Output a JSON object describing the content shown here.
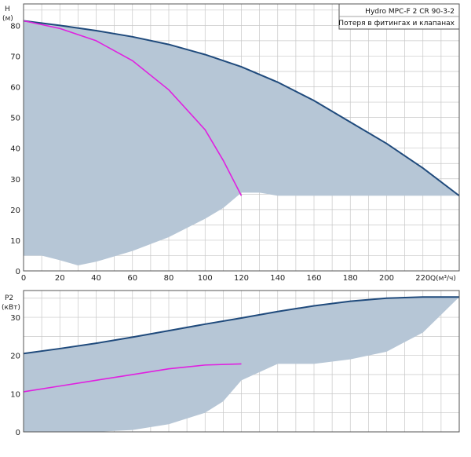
{
  "colors": {
    "envelope_fill": "#b6c6d6",
    "max_curve": "#1f4a7c",
    "system_curve": "#e020e0",
    "grid": "#c8c8c8",
    "frame": "#555555",
    "background": "#ffffff"
  },
  "legend": {
    "line1": "Hydro MPC-F 2 CR 90-3-2",
    "line2": "Потеря в фитингах и клапанах"
  },
  "chart_data": [
    {
      "type": "area",
      "name": "head-chart",
      "ylabel": "H",
      "yunit": "(м)",
      "xlabel": "Q(м³/ч)",
      "xlim": [
        0,
        240
      ],
      "ylim": [
        0,
        87
      ],
      "xticks": [
        0,
        20,
        40,
        60,
        80,
        100,
        120,
        140,
        160,
        180,
        200,
        220
      ],
      "yticks": [
        0,
        10,
        20,
        30,
        40,
        50,
        60,
        70,
        80
      ],
      "grid": true,
      "series": [
        {
          "role": "max-curve",
          "x": [
            0,
            20,
            40,
            60,
            80,
            100,
            120,
            140,
            160,
            180,
            200,
            220,
            240
          ],
          "y": [
            81.5,
            80,
            78.3,
            76.3,
            73.8,
            70.5,
            66.5,
            61.5,
            55.5,
            48.5,
            41.5,
            33.5,
            24.5
          ]
        },
        {
          "role": "system-curve",
          "x": [
            0,
            20,
            40,
            60,
            80,
            100,
            110,
            120
          ],
          "y": [
            81.5,
            79,
            75,
            68.5,
            59,
            46,
            36,
            24.5
          ]
        },
        {
          "role": "min-boundary",
          "x": [
            0,
            10,
            20,
            30,
            40,
            60,
            80,
            100,
            110,
            120,
            130,
            140,
            160,
            180,
            200,
            220,
            240
          ],
          "y": [
            5,
            5,
            3.5,
            1.8,
            3,
            6.5,
            11,
            17,
            20.5,
            25.5,
            25.5,
            24.5,
            24.5,
            24.5,
            24.5,
            24.5,
            24.5
          ]
        }
      ]
    },
    {
      "type": "area",
      "name": "power-chart",
      "ylabel": "P2",
      "yunit": "(кВт)",
      "xlim": [
        0,
        240
      ],
      "ylim": [
        0,
        37
      ],
      "yticks": [
        0,
        10,
        20,
        30
      ],
      "grid": true,
      "series": [
        {
          "role": "max-curve",
          "x": [
            0,
            20,
            40,
            60,
            80,
            100,
            120,
            140,
            160,
            180,
            200,
            220,
            240
          ],
          "y": [
            20.5,
            21.8,
            23.2,
            24.8,
            26.5,
            28.2,
            29.8,
            31.5,
            33,
            34.2,
            35,
            35.3,
            35.3
          ]
        },
        {
          "role": "system-curve",
          "x": [
            0,
            20,
            40,
            60,
            80,
            100,
            120
          ],
          "y": [
            10.5,
            12,
            13.5,
            15,
            16.5,
            17.5,
            17.8
          ]
        },
        {
          "role": "min-boundary",
          "x": [
            0,
            20,
            40,
            60,
            80,
            100,
            110,
            120,
            140,
            160,
            180,
            200,
            220,
            240
          ],
          "y": [
            0,
            0,
            0,
            0.5,
            2,
            5,
            8,
            13.5,
            17.8,
            17.8,
            19,
            21,
            26,
            35.3
          ]
        }
      ]
    }
  ]
}
